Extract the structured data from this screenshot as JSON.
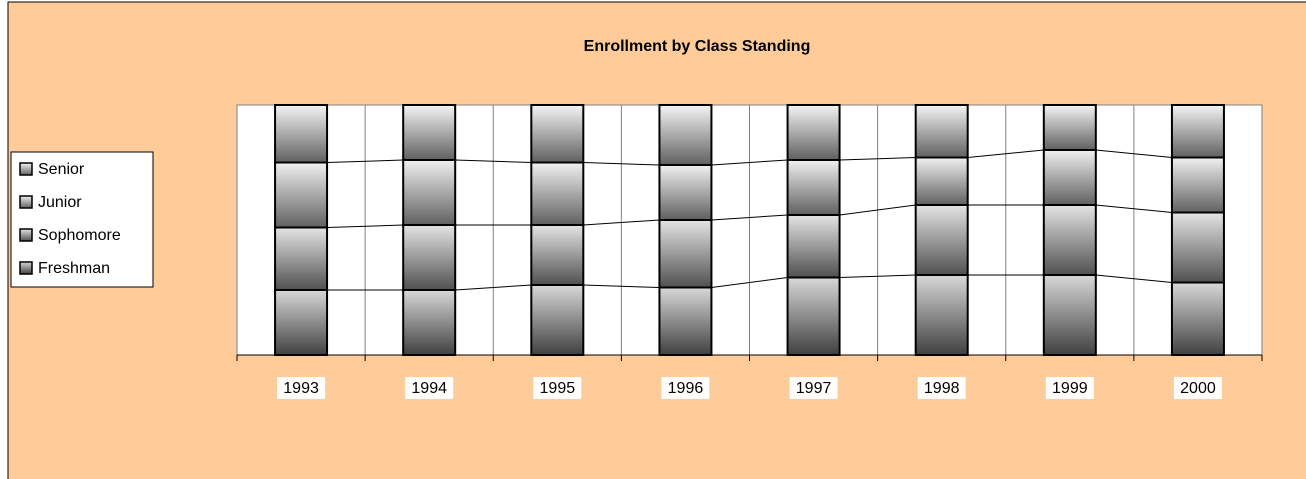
{
  "chart_data": {
    "type": "stacked_bar_100",
    "title": "Enrollment by Class Standing",
    "categories": [
      "1993",
      "1994",
      "1995",
      "1996",
      "1997",
      "1998",
      "1999",
      "2000"
    ],
    "series": [
      {
        "name": "Freshman",
        "color": "#404040",
        "values": [
          26,
          26,
          28,
          27,
          31,
          32,
          32,
          29
        ]
      },
      {
        "name": "Sophomore",
        "color": "#505050",
        "values": [
          25,
          26,
          24,
          27,
          25,
          28,
          28,
          28
        ]
      },
      {
        "name": "Junior",
        "color": "#606060",
        "values": [
          26,
          26,
          25,
          22,
          22,
          19,
          22,
          22
        ]
      },
      {
        "name": "Senior",
        "color": "#606060",
        "values": [
          23,
          22,
          23,
          24,
          22,
          21,
          18,
          21
        ]
      }
    ],
    "ylim": [
      0,
      100
    ],
    "legend": "left",
    "grid": true,
    "series_lines": true
  }
}
